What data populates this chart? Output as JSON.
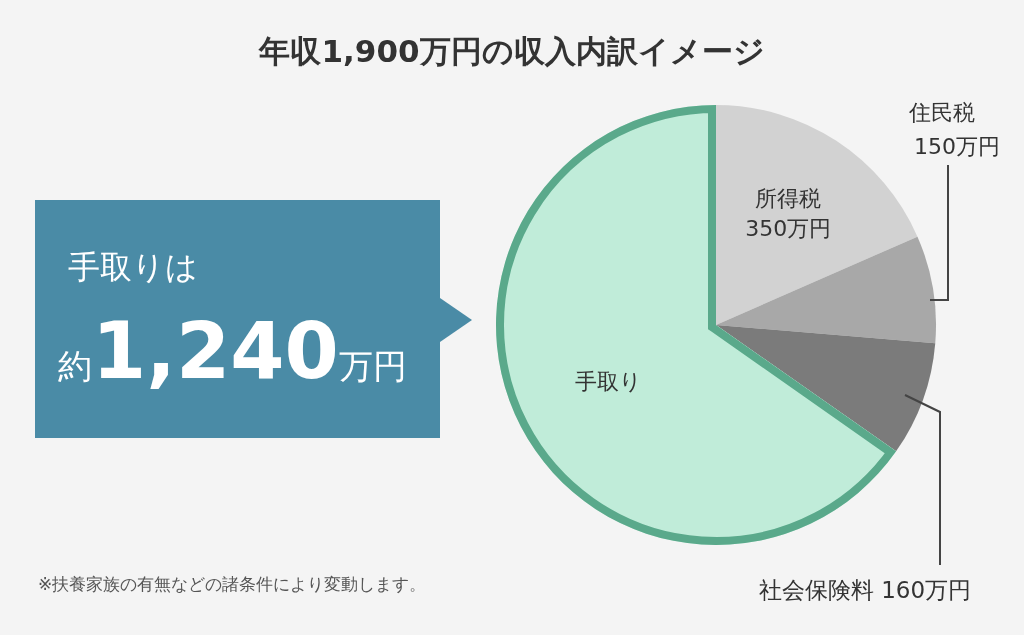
{
  "chart_data": {
    "type": "pie",
    "title": "年収1,900万円の収入内訳イメージ",
    "categories": [
      "所得税",
      "住民税",
      "社会保険料",
      "手取り"
    ],
    "values": [
      350,
      150,
      160,
      1240
    ],
    "colors": [
      "#d2d2d2",
      "#a8a8a8",
      "#7b7b7b",
      "#c0ecd9"
    ],
    "value_labels": [
      "350万円",
      "150万円",
      "160万円",
      null
    ],
    "annotations": [
      "手取りは",
      "約1,240万円",
      "※扶養家族の有無などの諸条件により変動します。"
    ]
  }
}
